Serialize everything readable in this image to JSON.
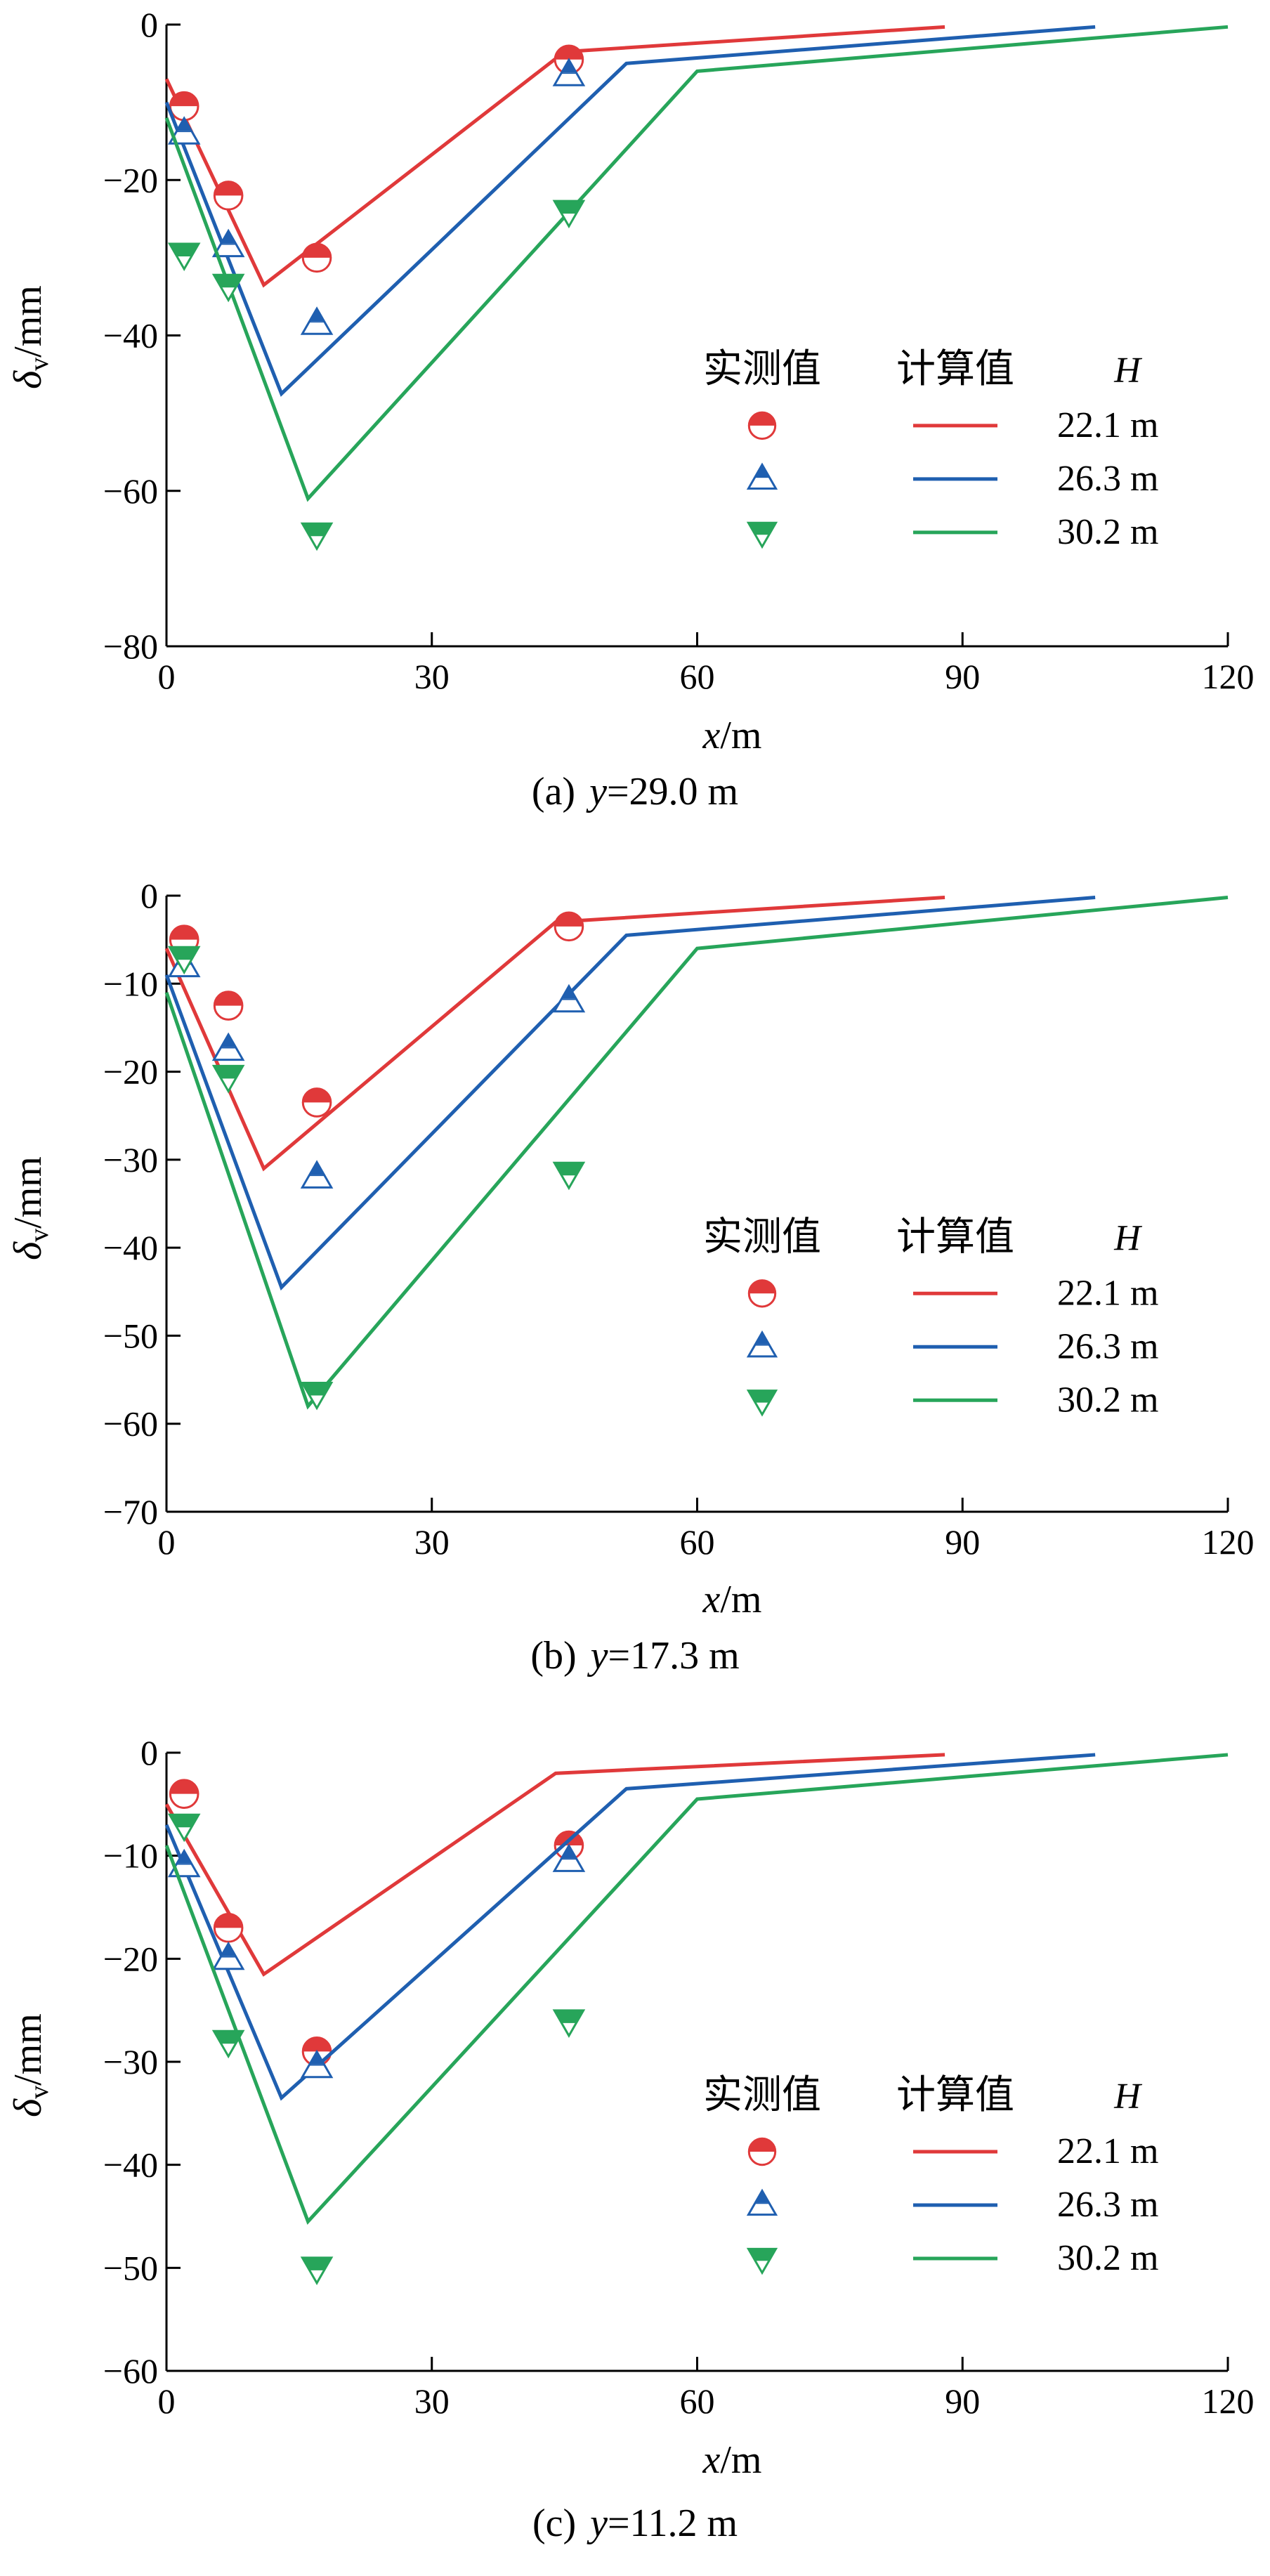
{
  "legend": {
    "measured_label": "实测值",
    "calculated_label": "计算值",
    "group_label": "H",
    "series_labels": [
      "22.1 m",
      "26.3 m",
      "30.2 m"
    ]
  },
  "colors": {
    "red": "#e0393a",
    "blue": "#1f5fb0",
    "green": "#27a55a"
  },
  "chart_data": [
    {
      "type": "line",
      "caption_prefix": "(a)",
      "caption_var": "y",
      "caption_value": "=29.0 m",
      "xlabel_var": "x",
      "xlabel_unit": "/m",
      "ylabel_var": "δ",
      "ylabel_sub": "v",
      "ylabel_unit": "/mm",
      "xlim": [
        0,
        120
      ],
      "ylim": [
        -80,
        0
      ],
      "xticks": [
        0,
        30,
        60,
        90,
        120
      ],
      "yticks": [
        0,
        -20,
        -40,
        -60,
        -80
      ],
      "series": [
        {
          "name": "22.1 m",
          "color": "red",
          "marker": "circle",
          "calculated": [
            [
              0,
              -7
            ],
            [
              11,
              -33.5
            ],
            [
              45,
              -3.5
            ],
            [
              88,
              -0.3
            ]
          ],
          "measured": [
            [
              2,
              -10.5
            ],
            [
              7,
              -22
            ],
            [
              17,
              -30
            ],
            [
              45.5,
              -4.5
            ]
          ]
        },
        {
          "name": "26.3 m",
          "color": "blue",
          "marker": "triangle-up",
          "calculated": [
            [
              0,
              -10
            ],
            [
              13,
              -47.5
            ],
            [
              52,
              -5
            ],
            [
              105,
              -0.3
            ]
          ],
          "measured": [
            [
              2,
              -14
            ],
            [
              7,
              -28.5
            ],
            [
              17,
              -38.5
            ],
            [
              45.5,
              -6.5
            ]
          ]
        },
        {
          "name": "30.2 m",
          "color": "green",
          "marker": "triangle-down",
          "calculated": [
            [
              0,
              -12
            ],
            [
              16,
              -61
            ],
            [
              60,
              -6
            ],
            [
              120,
              -0.3
            ]
          ],
          "measured": [
            [
              2,
              -29.5
            ],
            [
              7,
              -33.5
            ],
            [
              17,
              -65.5
            ],
            [
              45.5,
              -24
            ]
          ]
        }
      ]
    },
    {
      "type": "line",
      "caption_prefix": "(b)",
      "caption_var": "y",
      "caption_value": "=17.3 m",
      "xlabel_var": "x",
      "xlabel_unit": "/m",
      "ylabel_var": "δ",
      "ylabel_sub": "v",
      "ylabel_unit": "/mm",
      "xlim": [
        0,
        120
      ],
      "ylim": [
        -70,
        0
      ],
      "xticks": [
        0,
        30,
        60,
        90,
        120
      ],
      "yticks": [
        0,
        -10,
        -20,
        -30,
        -40,
        -50,
        -60,
        -70
      ],
      "series": [
        {
          "name": "22.1 m",
          "color": "red",
          "marker": "circle",
          "calculated": [
            [
              0,
              -6
            ],
            [
              11,
              -31
            ],
            [
              44,
              -3
            ],
            [
              88,
              -0.2
            ]
          ],
          "measured": [
            [
              2,
              -5
            ],
            [
              7,
              -12.5
            ],
            [
              17,
              -23.5
            ],
            [
              45.5,
              -3.5
            ]
          ]
        },
        {
          "name": "26.3 m",
          "color": "blue",
          "marker": "triangle-up",
          "calculated": [
            [
              0,
              -9
            ],
            [
              13,
              -44.5
            ],
            [
              52,
              -4.5
            ],
            [
              105,
              -0.2
            ]
          ],
          "measured": [
            [
              2,
              -8
            ],
            [
              7,
              -17.5
            ],
            [
              17,
              -32
            ],
            [
              45.5,
              -12
            ]
          ]
        },
        {
          "name": "30.2 m",
          "color": "green",
          "marker": "triangle-down",
          "calculated": [
            [
              0,
              -11
            ],
            [
              16,
              -58
            ],
            [
              60,
              -6
            ],
            [
              120,
              -0.2
            ]
          ],
          "measured": [
            [
              2,
              -7
            ],
            [
              7,
              -20.5
            ],
            [
              17,
              -56.5
            ],
            [
              45.5,
              -31.5
            ]
          ]
        }
      ]
    },
    {
      "type": "line",
      "caption_prefix": "(c)",
      "caption_var": "y",
      "caption_value": "=11.2 m",
      "xlabel_var": "x",
      "xlabel_unit": "/m",
      "ylabel_var": "δ",
      "ylabel_sub": "v",
      "ylabel_unit": "/mm",
      "xlim": [
        0,
        120
      ],
      "ylim": [
        -60,
        0
      ],
      "xticks": [
        0,
        30,
        60,
        90,
        120
      ],
      "yticks": [
        0,
        -10,
        -20,
        -30,
        -40,
        -50,
        -60
      ],
      "series": [
        {
          "name": "22.1 m",
          "color": "red",
          "marker": "circle",
          "calculated": [
            [
              0,
              -5
            ],
            [
              11,
              -21.5
            ],
            [
              44,
              -2
            ],
            [
              88,
              -0.2
            ]
          ],
          "measured": [
            [
              2,
              -4
            ],
            [
              7,
              -17
            ],
            [
              17,
              -29
            ],
            [
              45.5,
              -9
            ]
          ]
        },
        {
          "name": "26.3 m",
          "color": "blue",
          "marker": "triangle-up",
          "calculated": [
            [
              0,
              -7
            ],
            [
              13,
              -33.5
            ],
            [
              52,
              -3.5
            ],
            [
              105,
              -0.2
            ]
          ],
          "measured": [
            [
              2,
              -11
            ],
            [
              7,
              -20
            ],
            [
              17,
              -30.5
            ],
            [
              45.5,
              -10.5
            ]
          ]
        },
        {
          "name": "30.2 m",
          "color": "green",
          "marker": "triangle-down",
          "calculated": [
            [
              0,
              -9
            ],
            [
              16,
              -45.5
            ],
            [
              60,
              -4.5
            ],
            [
              120,
              -0.2
            ]
          ],
          "measured": [
            [
              2,
              -7
            ],
            [
              7,
              -28
            ],
            [
              17,
              -50
            ],
            [
              45.5,
              -26
            ]
          ]
        }
      ]
    }
  ]
}
